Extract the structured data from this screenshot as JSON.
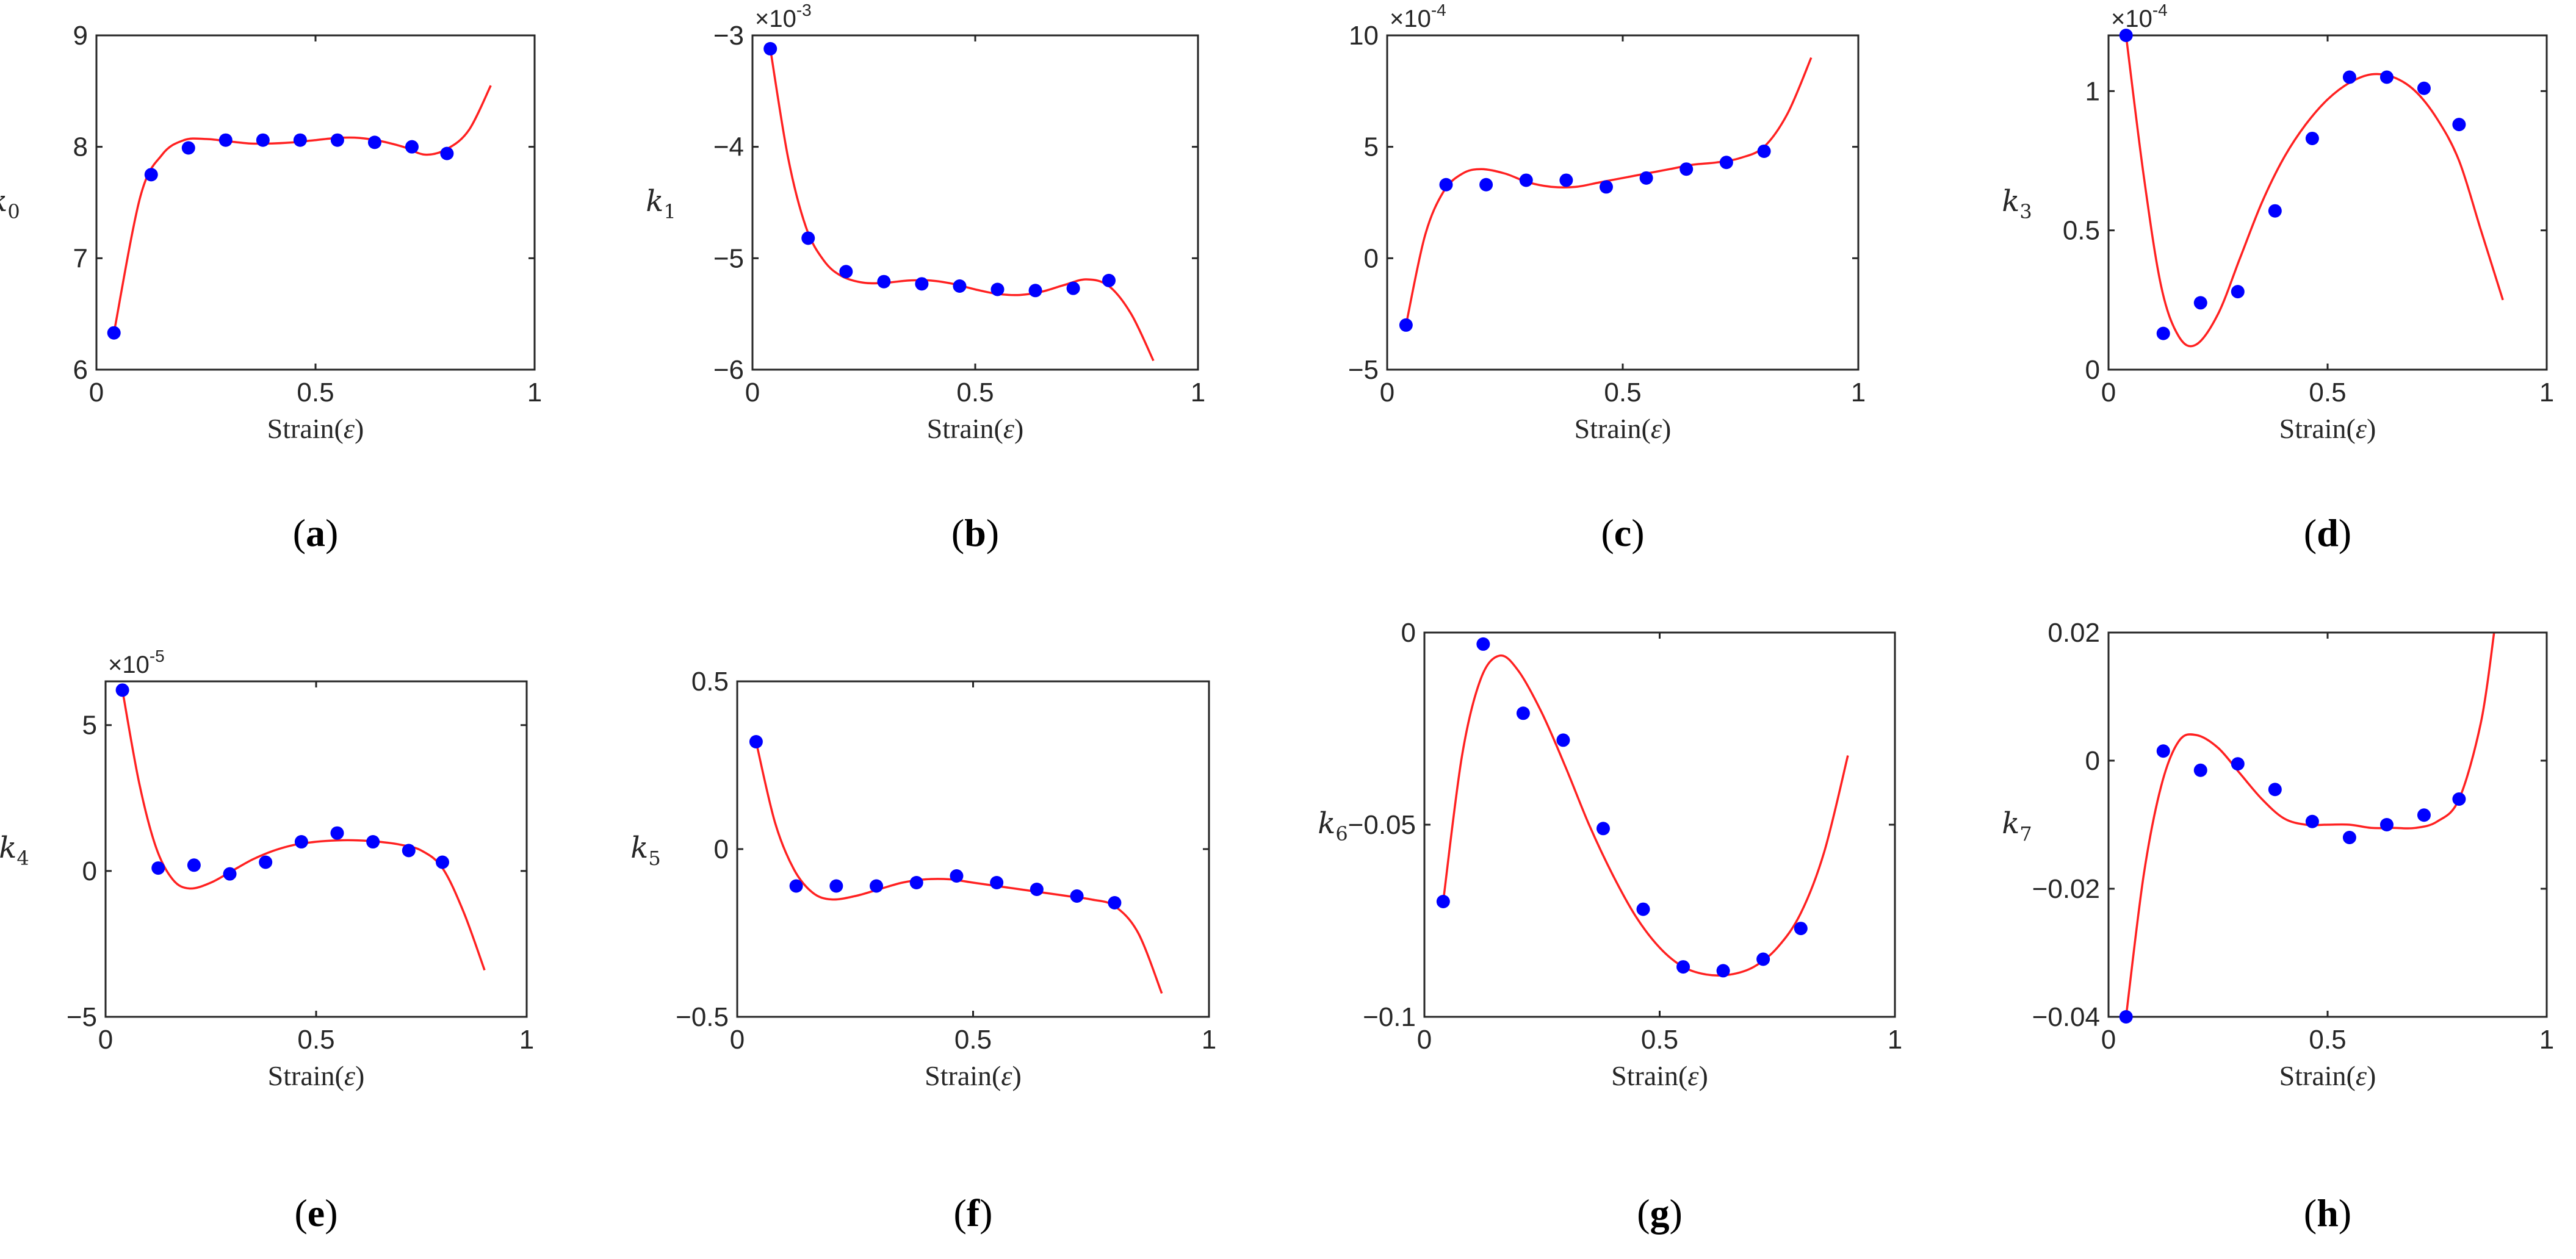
{
  "colors": {
    "points": "#0000ff",
    "curve": "#ff2020",
    "axes": "#262626"
  },
  "chart_data": [
    {
      "type": "scatter",
      "panel": "a",
      "title": "",
      "xlabel_text": "Strain(",
      "xlabel_symbol": "ε",
      "xlabel_close": ")",
      "ylabel_base": "k",
      "ylabel_sub": "0",
      "xlim": [
        0,
        1
      ],
      "ylim": [
        6,
        9
      ],
      "xticks": [
        0,
        0.5,
        1
      ],
      "xtick_labels": [
        "0",
        "0.5",
        "1"
      ],
      "yticks": [
        6,
        7,
        8,
        9
      ],
      "ytick_labels": [
        "6",
        "7",
        "8",
        "9"
      ],
      "exponent_base": "",
      "exponent_power": "",
      "series": [
        {
          "name": "data",
          "style": "markers",
          "x": [
            0.04,
            0.125,
            0.21,
            0.295,
            0.38,
            0.465,
            0.55,
            0.635,
            0.72,
            0.8
          ],
          "y": [
            6.33,
            7.75,
            7.99,
            8.06,
            8.06,
            8.06,
            8.06,
            8.04,
            8.0,
            7.94
          ]
        },
        {
          "name": "fit",
          "style": "line",
          "x": [
            0.04,
            0.1,
            0.15,
            0.2,
            0.25,
            0.3,
            0.35,
            0.4,
            0.45,
            0.5,
            0.55,
            0.6,
            0.65,
            0.7,
            0.75,
            0.8,
            0.85,
            0.9
          ],
          "y": [
            6.33,
            7.55,
            7.93,
            8.06,
            8.07,
            8.05,
            8.03,
            8.03,
            8.04,
            8.06,
            8.08,
            8.08,
            8.05,
            8.0,
            7.93,
            7.98,
            8.15,
            8.55
          ]
        }
      ],
      "caption_letter": "a"
    },
    {
      "type": "scatter",
      "panel": "b",
      "title": "",
      "xlabel_text": "Strain(",
      "xlabel_symbol": "ε",
      "xlabel_close": ")",
      "ylabel_base": "k",
      "ylabel_sub": "1",
      "xlim": [
        0,
        1
      ],
      "ylim": [
        -6,
        -3
      ],
      "xticks": [
        0,
        0.5,
        1
      ],
      "xtick_labels": [
        "0",
        "0.5",
        "1"
      ],
      "yticks": [
        -6,
        -5,
        -4,
        -3
      ],
      "ytick_labels": [
        "−6",
        "−5",
        "−4",
        "−3"
      ],
      "exponent_base": "×10",
      "exponent_power": "-3",
      "series": [
        {
          "name": "data",
          "style": "markers",
          "x": [
            0.04,
            0.125,
            0.21,
            0.295,
            0.38,
            0.465,
            0.55,
            0.635,
            0.72,
            0.8
          ],
          "y": [
            -3.12,
            -4.82,
            -5.12,
            -5.21,
            -5.23,
            -5.25,
            -5.28,
            -5.29,
            -5.27,
            -5.2
          ]
        },
        {
          "name": "fit",
          "style": "line",
          "x": [
            0.04,
            0.08,
            0.12,
            0.16,
            0.2,
            0.25,
            0.3,
            0.35,
            0.4,
            0.45,
            0.5,
            0.55,
            0.6,
            0.65,
            0.7,
            0.75,
            0.8,
            0.85,
            0.9
          ],
          "y": [
            -3.12,
            -4.1,
            -4.72,
            -5.02,
            -5.16,
            -5.22,
            -5.22,
            -5.2,
            -5.2,
            -5.23,
            -5.28,
            -5.32,
            -5.33,
            -5.3,
            -5.24,
            -5.19,
            -5.25,
            -5.5,
            -5.92
          ]
        }
      ],
      "caption_letter": "b"
    },
    {
      "type": "scatter",
      "panel": "c",
      "title": "",
      "xlabel_text": "Strain(",
      "xlabel_symbol": "ε",
      "xlabel_close": ")",
      "ylabel_base": "",
      "ylabel_sub": "",
      "xlim": [
        0,
        1
      ],
      "ylim": [
        -5,
        10
      ],
      "xticks": [
        0,
        0.5,
        1
      ],
      "xtick_labels": [
        "0",
        "0.5",
        "1"
      ],
      "yticks": [
        -5,
        0,
        5,
        10
      ],
      "ytick_labels": [
        "−5",
        "0",
        "5",
        "10"
      ],
      "exponent_base": "×10",
      "exponent_power": "-4",
      "series": [
        {
          "name": "data",
          "style": "markers",
          "x": [
            0.04,
            0.125,
            0.21,
            0.295,
            0.38,
            0.465,
            0.55,
            0.635,
            0.72,
            0.8
          ],
          "y": [
            -3.0,
            3.3,
            3.3,
            3.5,
            3.5,
            3.2,
            3.6,
            4.0,
            4.3,
            4.8
          ]
        },
        {
          "name": "fit",
          "style": "line",
          "x": [
            0.04,
            0.08,
            0.12,
            0.16,
            0.2,
            0.25,
            0.3,
            0.35,
            0.4,
            0.45,
            0.5,
            0.55,
            0.6,
            0.65,
            0.7,
            0.75,
            0.8,
            0.85,
            0.9
          ],
          "y": [
            -3.0,
            1.0,
            3.0,
            3.8,
            4.0,
            3.8,
            3.4,
            3.2,
            3.2,
            3.4,
            3.6,
            3.8,
            4.0,
            4.2,
            4.3,
            4.5,
            5.0,
            6.5,
            9.0
          ]
        }
      ],
      "caption_letter": "c"
    },
    {
      "type": "scatter",
      "panel": "d",
      "title": "",
      "xlabel_text": "Strain(",
      "xlabel_symbol": "ε",
      "xlabel_close": ")",
      "ylabel_base": "k",
      "ylabel_sub": "3",
      "xlim": [
        0,
        1
      ],
      "ylim": [
        0,
        1.2
      ],
      "xticks": [
        0,
        0.5,
        1
      ],
      "xtick_labels": [
        "0",
        "0.5",
        "1"
      ],
      "yticks": [
        0,
        0.5,
        1
      ],
      "ytick_labels": [
        "0",
        "0.5",
        "1"
      ],
      "exponent_base": "×10",
      "exponent_power": "-4",
      "series": [
        {
          "name": "data",
          "style": "markers",
          "x": [
            0.04,
            0.125,
            0.21,
            0.295,
            0.38,
            0.465,
            0.55,
            0.635,
            0.72,
            0.8
          ],
          "y": [
            1.2,
            0.13,
            0.24,
            0.28,
            0.57,
            0.83,
            1.05,
            1.05,
            1.01,
            0.88
          ]
        },
        {
          "name": "fit",
          "style": "line",
          "x": [
            0.04,
            0.08,
            0.12,
            0.16,
            0.2,
            0.25,
            0.3,
            0.35,
            0.4,
            0.45,
            0.5,
            0.55,
            0.6,
            0.65,
            0.7,
            0.75,
            0.8,
            0.85,
            0.9
          ],
          "y": [
            1.2,
            0.7,
            0.3,
            0.12,
            0.09,
            0.2,
            0.4,
            0.6,
            0.76,
            0.88,
            0.97,
            1.03,
            1.06,
            1.05,
            1.0,
            0.9,
            0.75,
            0.5,
            0.25
          ]
        }
      ],
      "caption_letter": "d"
    },
    {
      "type": "scatter",
      "panel": "e",
      "title": "",
      "xlabel_text": "Strain(",
      "xlabel_symbol": "ε",
      "xlabel_close": ")",
      "ylabel_base": "k",
      "ylabel_sub": "4",
      "xlim": [
        0,
        1
      ],
      "ylim": [
        -5,
        6.5
      ],
      "xticks": [
        0,
        0.5,
        1
      ],
      "xtick_labels": [
        "0",
        "0.5",
        "1"
      ],
      "yticks": [
        -5,
        0,
        5
      ],
      "ytick_labels": [
        "−5",
        "0",
        "5"
      ],
      "exponent_base": "×10",
      "exponent_power": "-5",
      "series": [
        {
          "name": "data",
          "style": "markers",
          "x": [
            0.04,
            0.125,
            0.21,
            0.295,
            0.38,
            0.465,
            0.55,
            0.635,
            0.72,
            0.8
          ],
          "y": [
            6.2,
            0.1,
            0.2,
            -0.1,
            0.3,
            1.0,
            1.3,
            1.0,
            0.7,
            0.3
          ]
        },
        {
          "name": "fit",
          "style": "line",
          "x": [
            0.04,
            0.08,
            0.12,
            0.16,
            0.2,
            0.25,
            0.3,
            0.35,
            0.4,
            0.45,
            0.5,
            0.55,
            0.6,
            0.65,
            0.7,
            0.75,
            0.8,
            0.85,
            0.9
          ],
          "y": [
            6.2,
            3.0,
            0.8,
            -0.3,
            -0.6,
            -0.4,
            0.0,
            0.4,
            0.7,
            0.9,
            1.0,
            1.05,
            1.05,
            1.0,
            0.9,
            0.7,
            0.1,
            -1.4,
            -3.4
          ]
        }
      ],
      "caption_letter": "e"
    },
    {
      "type": "scatter",
      "panel": "f",
      "title": "",
      "xlabel_text": "Strain(",
      "xlabel_symbol": "ε",
      "xlabel_close": ")",
      "ylabel_base": "k",
      "ylabel_sub": "5",
      "xlim": [
        0,
        1
      ],
      "ylim": [
        -0.5,
        0.5
      ],
      "xticks": [
        0,
        0.5,
        1
      ],
      "xtick_labels": [
        "0",
        "0.5",
        "1"
      ],
      "yticks": [
        -0.5,
        0,
        0.5
      ],
      "ytick_labels": [
        "−0.5",
        "0",
        "0.5"
      ],
      "exponent_base": "",
      "exponent_power": "",
      "series": [
        {
          "name": "data",
          "style": "markers",
          "x": [
            0.04,
            0.125,
            0.21,
            0.295,
            0.38,
            0.465,
            0.55,
            0.635,
            0.72,
            0.8
          ],
          "y": [
            0.32,
            -0.11,
            -0.11,
            -0.11,
            -0.1,
            -0.08,
            -0.1,
            -0.12,
            -0.14,
            -0.16
          ]
        },
        {
          "name": "fit",
          "style": "line",
          "x": [
            0.04,
            0.08,
            0.12,
            0.16,
            0.2,
            0.25,
            0.3,
            0.35,
            0.4,
            0.45,
            0.5,
            0.55,
            0.6,
            0.65,
            0.7,
            0.75,
            0.8,
            0.85,
            0.9
          ],
          "y": [
            0.32,
            0.08,
            -0.06,
            -0.13,
            -0.15,
            -0.14,
            -0.12,
            -0.1,
            -0.09,
            -0.09,
            -0.1,
            -0.11,
            -0.12,
            -0.13,
            -0.14,
            -0.15,
            -0.17,
            -0.25,
            -0.43
          ]
        }
      ],
      "caption_letter": "f"
    },
    {
      "type": "scatter",
      "panel": "g",
      "title": "",
      "xlabel_text": "Strain(",
      "xlabel_symbol": "ε",
      "xlabel_close": ")",
      "ylabel_base": "k",
      "ylabel_sub": "6",
      "xlim": [
        0,
        1
      ],
      "ylim": [
        -0.1,
        0
      ],
      "xticks": [
        0,
        0.5,
        1
      ],
      "xtick_labels": [
        "0",
        "0.5",
        "1"
      ],
      "yticks": [
        -0.1,
        -0.05,
        0
      ],
      "ytick_labels": [
        "−0.1",
        "−0.05",
        "0"
      ],
      "exponent_base": "",
      "exponent_power": "",
      "series": [
        {
          "name": "data",
          "style": "markers",
          "x": [
            0.04,
            0.125,
            0.21,
            0.295,
            0.38,
            0.465,
            0.55,
            0.635,
            0.72,
            0.8
          ],
          "y": [
            -0.07,
            -0.003,
            -0.021,
            -0.028,
            -0.051,
            -0.072,
            -0.087,
            -0.088,
            -0.085,
            -0.077
          ]
        },
        {
          "name": "fit",
          "style": "line",
          "x": [
            0.04,
            0.08,
            0.12,
            0.16,
            0.2,
            0.25,
            0.3,
            0.35,
            0.4,
            0.45,
            0.5,
            0.55,
            0.6,
            0.65,
            0.7,
            0.75,
            0.8,
            0.85,
            0.9
          ],
          "y": [
            -0.07,
            -0.032,
            -0.012,
            -0.006,
            -0.01,
            -0.021,
            -0.035,
            -0.05,
            -0.063,
            -0.074,
            -0.082,
            -0.087,
            -0.089,
            -0.089,
            -0.087,
            -0.082,
            -0.073,
            -0.057,
            -0.032
          ]
        }
      ],
      "caption_letter": "g"
    },
    {
      "type": "scatter",
      "panel": "h",
      "title": "",
      "xlabel_text": "Strain(",
      "xlabel_symbol": "ε",
      "xlabel_close": ")",
      "ylabel_base": "k",
      "ylabel_sub": "7",
      "xlim": [
        0,
        1
      ],
      "ylim": [
        -0.04,
        0.02
      ],
      "xticks": [
        0,
        0.5,
        1
      ],
      "xtick_labels": [
        "0",
        "0.5",
        "1"
      ],
      "yticks": [
        -0.04,
        -0.02,
        0,
        0.02
      ],
      "ytick_labels": [
        "−0.04",
        "−0.02",
        "0",
        "0.02"
      ],
      "exponent_base": "",
      "exponent_power": "",
      "series": [
        {
          "name": "data",
          "style": "markers",
          "x": [
            0.04,
            0.125,
            0.21,
            0.295,
            0.38,
            0.465,
            0.55,
            0.635,
            0.72,
            0.8
          ],
          "y": [
            -0.04,
            0.0015,
            -0.0015,
            -0.0005,
            -0.0045,
            -0.0095,
            -0.012,
            -0.01,
            -0.0085,
            -0.006
          ]
        },
        {
          "name": "fit",
          "style": "line",
          "x": [
            0.04,
            0.08,
            0.12,
            0.16,
            0.2,
            0.25,
            0.3,
            0.35,
            0.4,
            0.45,
            0.5,
            0.55,
            0.6,
            0.65,
            0.7,
            0.75,
            0.8,
            0.85,
            0.88
          ],
          "y": [
            -0.04,
            -0.018,
            -0.004,
            0.003,
            0.004,
            0.002,
            -0.002,
            -0.006,
            -0.009,
            -0.01,
            -0.01,
            -0.01,
            -0.0105,
            -0.0105,
            -0.0105,
            -0.0095,
            -0.006,
            0.006,
            0.02
          ]
        }
      ],
      "caption_letter": "h"
    }
  ]
}
